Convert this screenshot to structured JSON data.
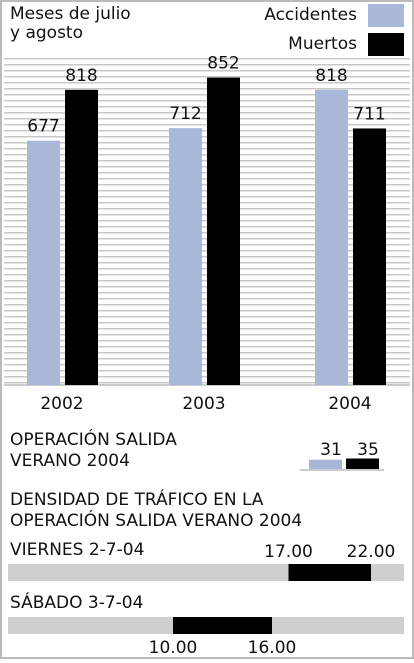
{
  "chart_data": [
    {
      "type": "bar",
      "subtitle": [
        "Meses de julio",
        "y agosto"
      ],
      "categories": [
        "2002",
        "2003",
        "2004"
      ],
      "series": [
        {
          "name": "Accidentes",
          "color": "#a9b7d9",
          "values": [
            677,
            712,
            818
          ]
        },
        {
          "name": "Muertos",
          "color": "#000000",
          "values": [
            818,
            852,
            711
          ]
        }
      ],
      "ylim": [
        0,
        1067
      ]
    },
    {
      "type": "minibar",
      "title": [
        "OPERACIÓN SALIDA",
        "VERANO 2004"
      ],
      "values": [
        31,
        35
      ],
      "colors": [
        "#a9b7d9",
        "#000000"
      ]
    },
    {
      "type": "range",
      "title": [
        "DENSIDAD DE TRÁFICO EN LA",
        "OPERACIÓN SALIDA VERANO 2004"
      ],
      "xlim": [
        0,
        24
      ],
      "rows": [
        {
          "label": "VIERNES 2-7-04",
          "values": [
            17,
            22
          ],
          "value_labels": [
            "17.00",
            "22.00"
          ]
        },
        {
          "label": "SÁBADO 3-7-04",
          "values": [
            10,
            16
          ],
          "value_labels": [
            "10.00",
            "16.00"
          ]
        }
      ]
    }
  ]
}
